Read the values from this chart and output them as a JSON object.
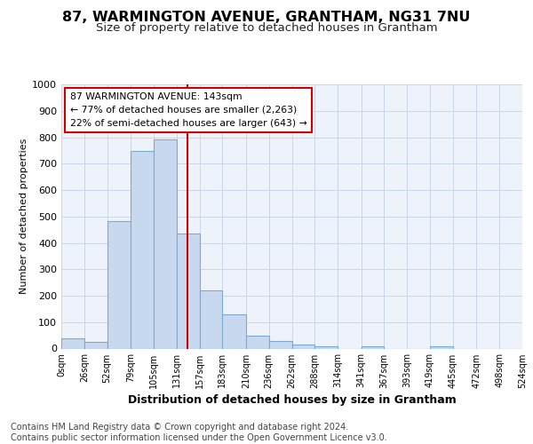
{
  "title1": "87, WARMINGTON AVENUE, GRANTHAM, NG31 7NU",
  "title2": "Size of property relative to detached houses in Grantham",
  "xlabel": "Distribution of detached houses by size in Grantham",
  "ylabel": "Number of detached properties",
  "bar_edges": [
    0,
    26,
    52,
    79,
    105,
    131,
    157,
    183,
    210,
    236,
    262,
    288,
    314,
    341,
    367,
    393,
    419,
    445,
    472,
    498,
    524
  ],
  "bar_heights": [
    40,
    25,
    483,
    748,
    790,
    435,
    220,
    128,
    50,
    28,
    15,
    10,
    0,
    7,
    0,
    0,
    8,
    0,
    0,
    0
  ],
  "bar_color": "#c8d9ef",
  "bar_edge_color": "#7aaad0",
  "property_line_x": 143,
  "property_line_color": "#cc0000",
  "annotation_text": "87 WARMINGTON AVENUE: 143sqm\n← 77% of detached houses are smaller (2,263)\n22% of semi-detached houses are larger (643) →",
  "annotation_box_color": "#cc0000",
  "annotation_text_color": "#000000",
  "annotation_bg_color": "#ffffff",
  "ylim": [
    0,
    1000
  ],
  "yticks": [
    0,
    100,
    200,
    300,
    400,
    500,
    600,
    700,
    800,
    900,
    1000
  ],
  "xtick_labels": [
    "0sqm",
    "26sqm",
    "52sqm",
    "79sqm",
    "105sqm",
    "131sqm",
    "157sqm",
    "183sqm",
    "210sqm",
    "236sqm",
    "262sqm",
    "288sqm",
    "314sqm",
    "341sqm",
    "367sqm",
    "393sqm",
    "419sqm",
    "445sqm",
    "472sqm",
    "498sqm",
    "524sqm"
  ],
  "grid_color": "#c8d8e8",
  "bg_color": "#eef3fb",
  "footer_text": "Contains HM Land Registry data © Crown copyright and database right 2024.\nContains public sector information licensed under the Open Government Licence v3.0.",
  "title1_fontsize": 11.5,
  "title2_fontsize": 9.5,
  "xlabel_fontsize": 9,
  "ylabel_fontsize": 8,
  "footer_fontsize": 7
}
